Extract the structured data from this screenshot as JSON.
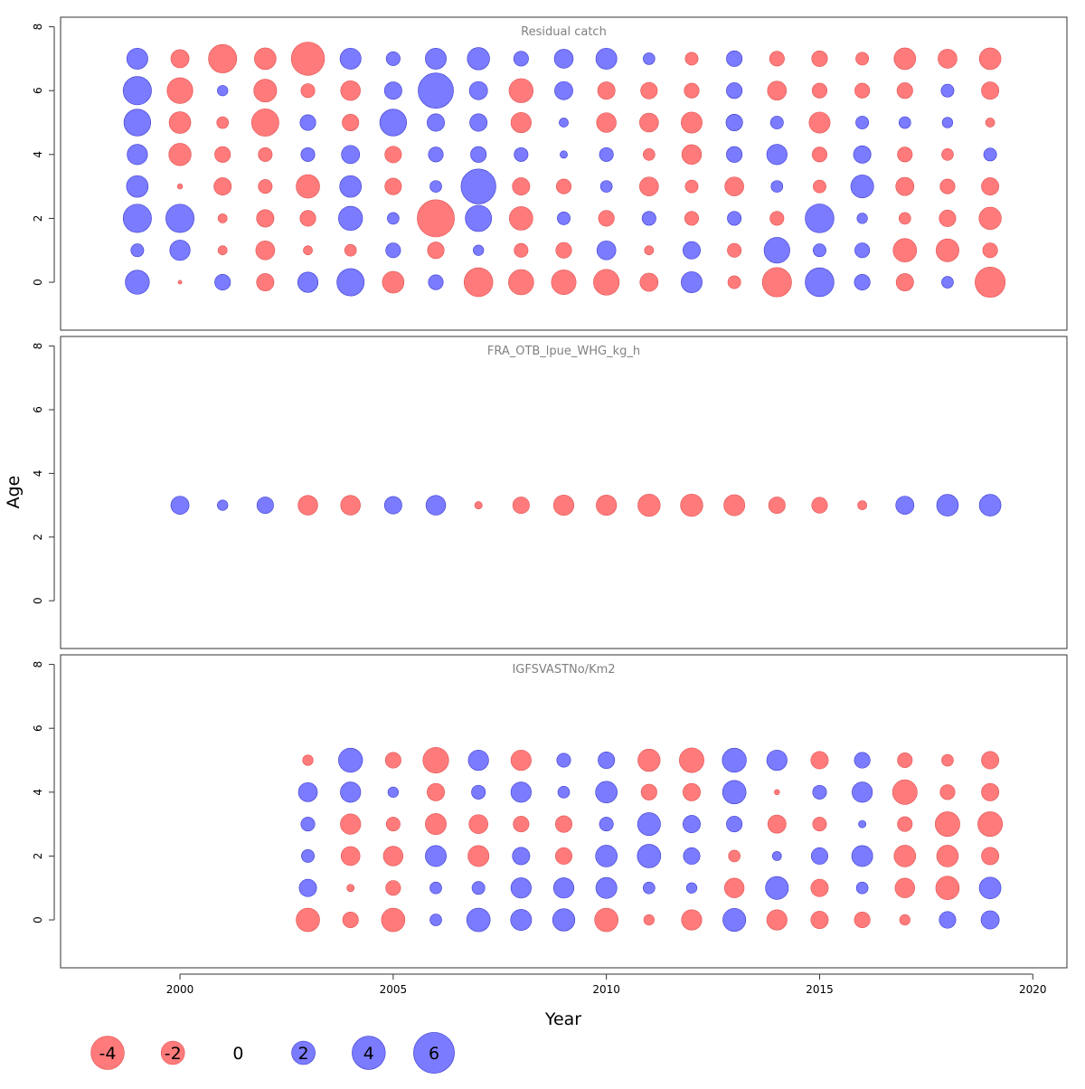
{
  "chart_data": {
    "type": "scatter",
    "xlabel": "Year",
    "ylabel": "Age",
    "xlim": [
      1997.2,
      2020.8
    ],
    "xticks": [
      2000,
      2005,
      2010,
      2015,
      2020
    ],
    "yticks": [
      0,
      2,
      4,
      6,
      8
    ],
    "ylim": [
      -1.5,
      8.3
    ],
    "colors": {
      "positive": "#7b7bff",
      "negative": "#ff7b7b",
      "positive_stroke": "#3a3ad0",
      "negative_stroke": "#e05050"
    },
    "legend": {
      "position": "bottom-left",
      "values": [
        -4,
        -2,
        0,
        2,
        4,
        6
      ],
      "labels": [
        "-4",
        "-2",
        "0",
        "2",
        "4",
        "6"
      ]
    },
    "panels": [
      {
        "title": "Residual catch",
        "years": [
          1999,
          2000,
          2001,
          2002,
          2003,
          2004,
          2005,
          2006,
          2007,
          2008,
          2009,
          2010,
          2011,
          2012,
          2013,
          2014,
          2015,
          2016,
          2017,
          2018,
          2019
        ],
        "ages": [
          0,
          1,
          2,
          3,
          4,
          5,
          6,
          7
        ],
        "residuals": [
          [
            2.1,
            -0.05,
            0.9,
            -1.1,
            1.5,
            2.7,
            -1.7,
            0.8,
            -3.0,
            -2.3,
            -2.2,
            -2.4,
            -1.2,
            1.6,
            -0.6,
            -3.1,
            3.0,
            0.9,
            -1.1,
            0.5,
            -3.3
          ],
          [
            0.6,
            1.5,
            -0.3,
            -1.3,
            -0.3,
            -0.5,
            0.8,
            -1.0,
            0.4,
            -0.7,
            -0.9,
            1.3,
            -0.3,
            1.1,
            -0.7,
            2.4,
            0.6,
            0.8,
            -2.0,
            -1.9,
            -0.8
          ],
          [
            2.9,
            2.9,
            -0.3,
            -1.1,
            -0.9,
            2.1,
            0.5,
            -5.0,
            2.5,
            -2.0,
            0.6,
            -0.9,
            0.7,
            -0.7,
            0.7,
            -0.7,
            3.0,
            0.4,
            -0.5,
            -1.0,
            -1.8
          ],
          [
            1.7,
            -0.1,
            -1.1,
            -0.7,
            -2.0,
            1.7,
            -1.0,
            0.5,
            4.4,
            -1.1,
            -0.8,
            0.5,
            -1.3,
            -0.6,
            -1.3,
            0.5,
            -0.6,
            1.9,
            -1.2,
            -0.8,
            -1.1
          ],
          [
            1.5,
            -1.8,
            -0.9,
            -0.7,
            0.7,
            1.2,
            -1.0,
            0.8,
            0.9,
            0.7,
            0.2,
            0.7,
            -0.5,
            -1.4,
            0.9,
            1.5,
            -0.8,
            1.1,
            -0.8,
            -0.5,
            0.6
          ],
          [
            2.6,
            -1.7,
            -0.5,
            -2.7,
            0.9,
            -1.0,
            2.6,
            1.1,
            1.1,
            -1.5,
            0.3,
            -1.4,
            -1.3,
            -1.6,
            1.0,
            0.6,
            -1.6,
            0.6,
            0.5,
            0.4,
            -0.3
          ],
          [
            2.9,
            -2.4,
            0.4,
            -1.9,
            -0.7,
            -1.4,
            1.1,
            4.5,
            1.2,
            -2.1,
            1.2,
            -1.1,
            -1.0,
            -0.8,
            0.9,
            -1.3,
            -0.8,
            -0.8,
            -0.9,
            0.6,
            -1.1
          ],
          [
            1.6,
            -1.2,
            -2.9,
            -1.7,
            -4.0,
            1.6,
            0.7,
            1.6,
            1.8,
            0.8,
            1.3,
            1.6,
            0.5,
            -0.6,
            0.9,
            -0.8,
            -0.9,
            -0.6,
            -1.7,
            -1.3,
            -1.7
          ]
        ]
      },
      {
        "title": "FRA_OTB_lpue_WHG_kg_h",
        "years": [
          2000,
          2001,
          2002,
          2003,
          2004,
          2005,
          2006,
          2007,
          2008,
          2009,
          2010,
          2011,
          2012,
          2013,
          2014,
          2015,
          2016,
          2017,
          2018,
          2019
        ],
        "ages": [
          3
        ],
        "residuals": [
          [
            1.2,
            0.4,
            1.0,
            -1.4,
            -1.4,
            1.1,
            1.4,
            -0.2,
            -1.0,
            -1.5,
            -1.5,
            -1.8,
            -1.8,
            -1.6,
            -1.0,
            -0.9,
            -0.3,
            1.2,
            1.7,
            1.7
          ]
        ]
      },
      {
        "title": "IGFSVASTNo/Km2",
        "years": [
          2003,
          2004,
          2005,
          2006,
          2007,
          2008,
          2009,
          2010,
          2011,
          2012,
          2013,
          2014,
          2015,
          2016,
          2017,
          2018,
          2019
        ],
        "ages": [
          0,
          1,
          2,
          3,
          4,
          5
        ],
        "residuals": [
          [
            -2.0,
            -0.9,
            -2.0,
            0.5,
            2.0,
            1.6,
            1.8,
            -2.0,
            -0.4,
            -1.5,
            1.9,
            -1.5,
            -1.1,
            -0.9,
            -0.4,
            1.0,
            1.2
          ],
          [
            1.1,
            -0.2,
            -0.8,
            0.5,
            0.6,
            1.5,
            1.5,
            1.6,
            0.5,
            0.4,
            -1.4,
            1.9,
            -1.1,
            0.5,
            -1.4,
            -2.0,
            1.7
          ],
          [
            0.6,
            -1.3,
            -1.4,
            1.6,
            -1.6,
            1.1,
            -1.0,
            1.7,
            2.0,
            1.0,
            -0.5,
            0.3,
            1.0,
            1.6,
            -1.7,
            -1.7,
            -1.1
          ],
          [
            0.7,
            -1.5,
            -0.7,
            -1.6,
            -1.3,
            -0.9,
            -1.0,
            0.7,
            1.9,
            1.1,
            0.9,
            -1.2,
            -0.7,
            0.2,
            -0.8,
            -2.2,
            -2.2
          ],
          [
            1.3,
            1.5,
            0.4,
            -1.1,
            0.7,
            1.5,
            0.5,
            1.7,
            -0.9,
            -1.1,
            2.0,
            -0.1,
            0.7,
            1.5,
            -2.2,
            -0.8,
            -1.1
          ],
          [
            -0.4,
            2.1,
            -0.9,
            -2.4,
            1.5,
            -1.5,
            0.7,
            1.0,
            -1.8,
            -2.2,
            2.1,
            1.5,
            -1.1,
            0.9,
            -0.8,
            -0.5,
            -1.1
          ]
        ]
      }
    ]
  }
}
